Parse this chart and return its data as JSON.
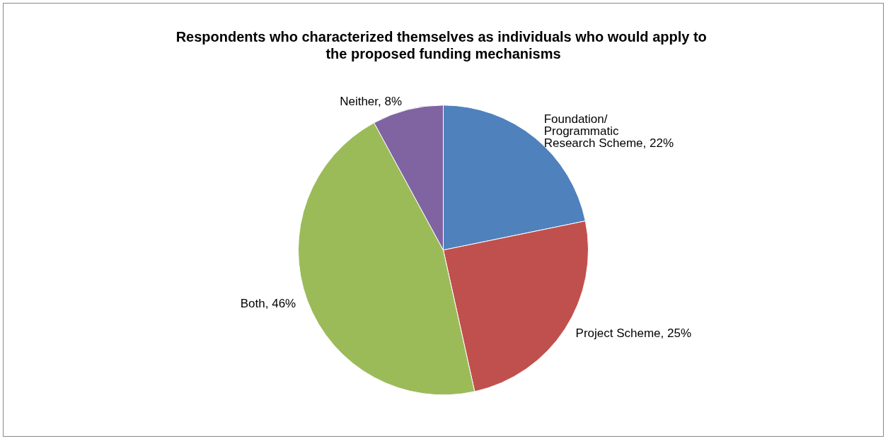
{
  "chart_data": {
    "type": "pie",
    "title": "Respondents who characterized themselves as individuals who would apply to the proposed funding mechanisms",
    "categories": [
      "Foundation/ Programmatic Research Scheme",
      "Project Scheme",
      "Both",
      "Neither"
    ],
    "values": [
      22,
      25,
      46,
      8
    ],
    "colors": [
      "#4f81bd",
      "#c0504d",
      "#9bbb59",
      "#8064a2"
    ],
    "value_labels": [
      "22%",
      "25%",
      "46%",
      "8%"
    ],
    "legend": false
  }
}
